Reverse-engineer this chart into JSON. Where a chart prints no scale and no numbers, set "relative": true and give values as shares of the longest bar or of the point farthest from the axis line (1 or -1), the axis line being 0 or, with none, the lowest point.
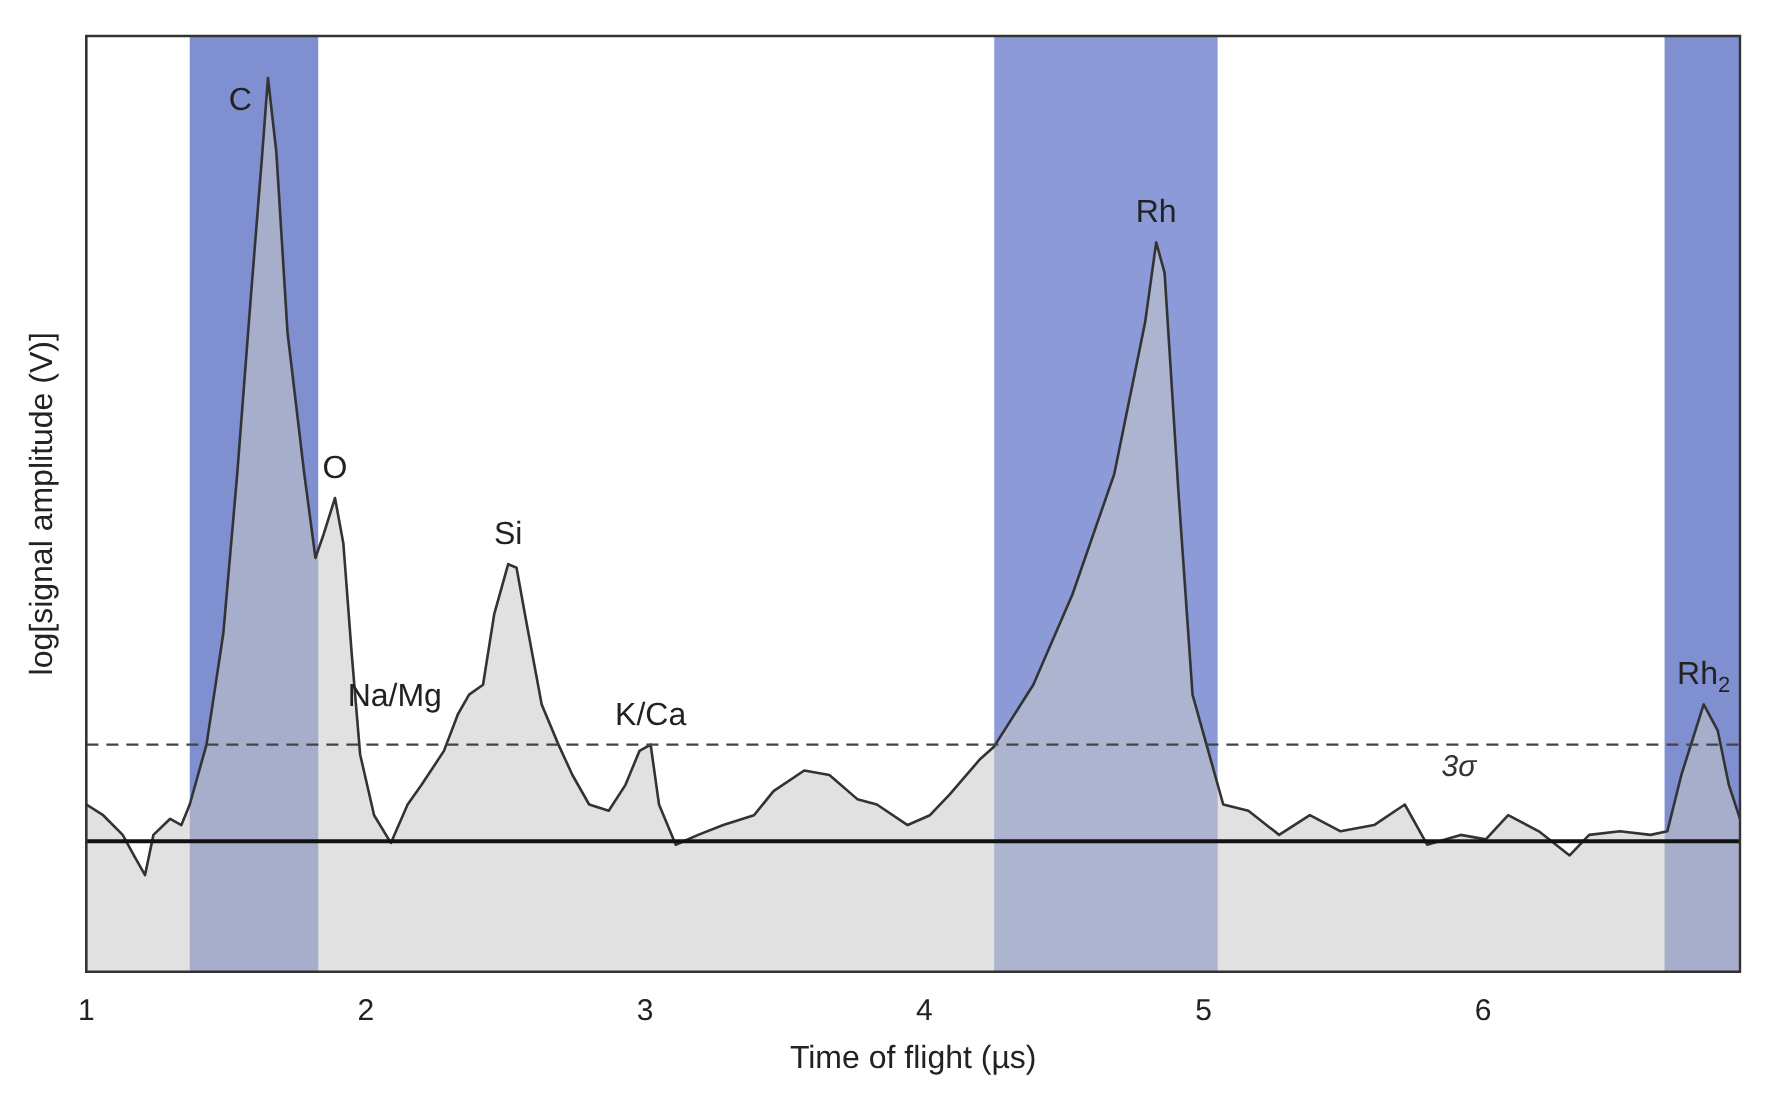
{
  "chart_data": {
    "type": "area",
    "xlabel": "Time of flight (µs)",
    "ylabel": "log[signal amplitude (V)]",
    "relative": true,
    "xlim": [
      1,
      6.92
    ],
    "xticks": [
      1,
      2,
      3,
      4,
      5,
      6
    ],
    "grid": false,
    "legend": false,
    "x": [
      1.0,
      1.06,
      1.13,
      1.17,
      1.21,
      1.24,
      1.3,
      1.34,
      1.37,
      1.43,
      1.49,
      1.54,
      1.59,
      1.63,
      1.65,
      1.68,
      1.72,
      1.78,
      1.82,
      1.85,
      1.89,
      1.92,
      1.95,
      1.98,
      2.03,
      2.09,
      2.15,
      2.2,
      2.28,
      2.33,
      2.37,
      2.42,
      2.46,
      2.51,
      2.54,
      2.57,
      2.63,
      2.69,
      2.74,
      2.8,
      2.87,
      2.93,
      2.98,
      3.02,
      3.05,
      3.11,
      3.19,
      3.28,
      3.39,
      3.46,
      3.57,
      3.66,
      3.76,
      3.83,
      3.94,
      4.02,
      4.09,
      4.2,
      4.25,
      4.39,
      4.53,
      4.68,
      4.79,
      4.83,
      4.86,
      4.91,
      4.96,
      5.01,
      5.07,
      5.16,
      5.27,
      5.38,
      5.49,
      5.61,
      5.72,
      5.8,
      5.92,
      6.01,
      6.09,
      6.2,
      6.31,
      6.38,
      6.49,
      6.6,
      6.66,
      6.71,
      6.79,
      6.84,
      6.88,
      6.92
    ],
    "series": [
      {
        "color": "#333333",
        "values": [
          0.187,
          0.175,
          0.153,
          0.13,
          0.108,
          0.153,
          0.171,
          0.164,
          0.187,
          0.254,
          0.378,
          0.557,
          0.76,
          0.917,
          1.0,
          0.917,
          0.715,
          0.557,
          0.463,
          0.49,
          0.53,
          0.479,
          0.355,
          0.243,
          0.175,
          0.144,
          0.187,
          0.209,
          0.247,
          0.288,
          0.31,
          0.321,
          0.4,
          0.456,
          0.452,
          0.4,
          0.299,
          0.254,
          0.22,
          0.187,
          0.18,
          0.209,
          0.247,
          0.254,
          0.187,
          0.142,
          0.153,
          0.164,
          0.175,
          0.202,
          0.225,
          0.22,
          0.193,
          0.187,
          0.164,
          0.175,
          0.198,
          0.238,
          0.252,
          0.321,
          0.422,
          0.557,
          0.726,
          0.816,
          0.782,
          0.535,
          0.31,
          0.254,
          0.187,
          0.18,
          0.153,
          0.175,
          0.157,
          0.164,
          0.187,
          0.142,
          0.153,
          0.148,
          0.175,
          0.157,
          0.13,
          0.153,
          0.157,
          0.153,
          0.157,
          0.22,
          0.299,
          0.27,
          0.209,
          0.171
        ]
      }
    ],
    "ref_lines": [
      {
        "axis": "y",
        "value": 0.146,
        "color": "#111111",
        "line_style": "solid"
      },
      {
        "axis": "y",
        "value": 0.254,
        "label": "3σ",
        "color": "#444444",
        "line_style": "dashed"
      }
    ],
    "bands": [
      {
        "axis": "x",
        "from": 1.37,
        "to": 1.83,
        "color": "#7f8fd0"
      },
      {
        "axis": "x",
        "from": 4.25,
        "to": 5.05,
        "color": "#8c9bd8"
      },
      {
        "axis": "x",
        "from": 6.65,
        "to": 6.92,
        "color": "#7f8fd0"
      }
    ],
    "annotations": [
      {
        "text": "C",
        "x": 1.65,
        "y": 1.0
      },
      {
        "text": "O",
        "x": 1.89,
        "y": 0.53
      },
      {
        "text": "Na/Mg",
        "x": 2.33,
        "y": 0.288
      },
      {
        "text": "Si",
        "x": 2.51,
        "y": 0.456
      },
      {
        "text": "K/Ca",
        "x": 3.02,
        "y": 0.254
      },
      {
        "text": "Rh",
        "x": 4.83,
        "y": 0.816
      },
      {
        "text": "Rh$_{2}$",
        "x": 6.79,
        "y": 0.299
      }
    ]
  }
}
